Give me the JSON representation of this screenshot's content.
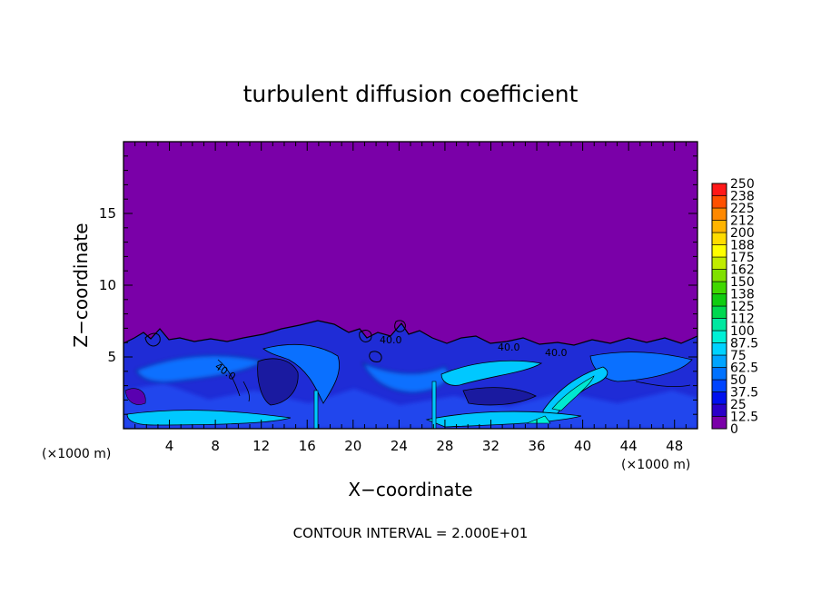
{
  "chart_data": {
    "type": "heatmap",
    "title": "turbulent diffusion coefficient",
    "xlabel": "X−coordinate",
    "ylabel": "Z−coordinate",
    "x_unit_left": "(×1000 m)",
    "x_unit_right": "(×1000 m)",
    "xlim": [
      0,
      50
    ],
    "ylim": [
      0,
      20
    ],
    "x_ticks": [
      4,
      8,
      12,
      16,
      20,
      24,
      28,
      32,
      36,
      40,
      44,
      48
    ],
    "y_ticks": [
      5,
      10,
      15
    ],
    "colorbar": {
      "levels": [
        "0",
        "12.5",
        "25",
        "37.5",
        "50",
        "62.5",
        "75",
        "87.5",
        "100",
        "112",
        "125",
        "138",
        "150",
        "162",
        "175",
        "188",
        "200",
        "212",
        "225",
        "238",
        "250"
      ],
      "colors": [
        "#7a00a8",
        "#2b00c8",
        "#0010ee",
        "#0044ff",
        "#0072ff",
        "#00a4ff",
        "#00d2ff",
        "#00f0d6",
        "#00e8a0",
        "#00d850",
        "#10cc10",
        "#40d800",
        "#80e000",
        "#c0ec00",
        "#ffff00",
        "#ffdc00",
        "#ffb400",
        "#ff8800",
        "#ff5000",
        "#ff1818",
        "#ff8080"
      ]
    },
    "contour_labels": [
      "40.0",
      "40.0",
      "40.0",
      "40.0"
    ],
    "footer": "CONTOUR INTERVAL = 2.000E+01"
  }
}
